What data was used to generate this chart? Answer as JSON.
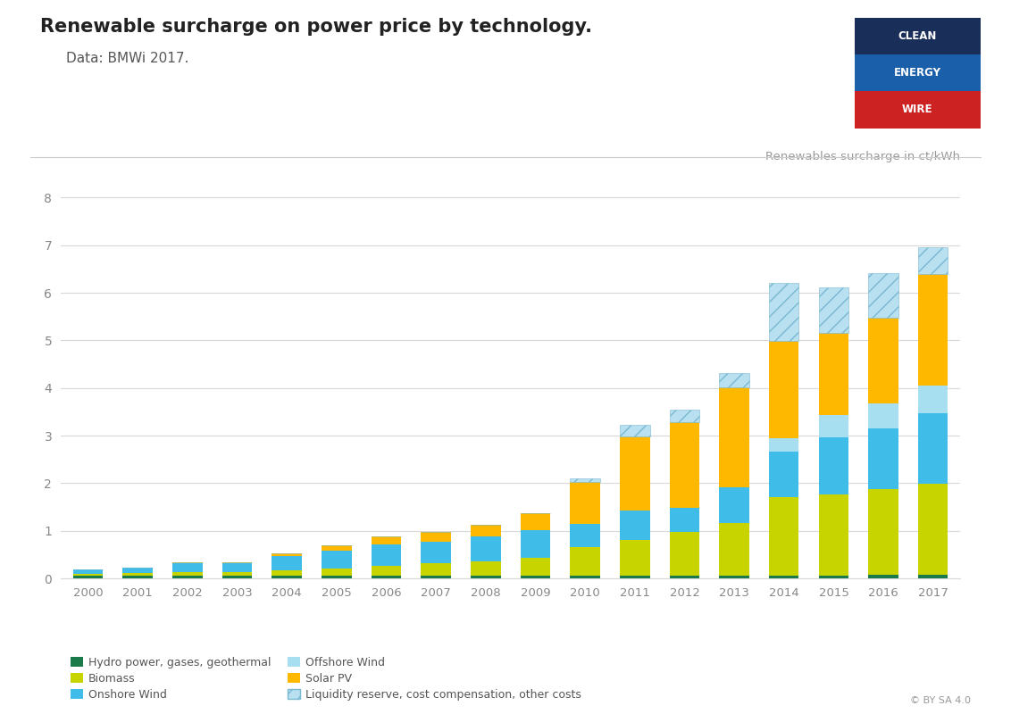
{
  "years": [
    2000,
    2001,
    2002,
    2003,
    2004,
    2005,
    2006,
    2007,
    2008,
    2009,
    2010,
    2011,
    2012,
    2013,
    2014,
    2015,
    2016,
    2017
  ],
  "hydro": [
    0.05,
    0.05,
    0.06,
    0.05,
    0.06,
    0.06,
    0.06,
    0.06,
    0.06,
    0.06,
    0.06,
    0.06,
    0.06,
    0.06,
    0.06,
    0.06,
    0.07,
    0.07
  ],
  "biomass": [
    0.04,
    0.06,
    0.08,
    0.08,
    0.1,
    0.15,
    0.2,
    0.25,
    0.3,
    0.38,
    0.6,
    0.75,
    0.92,
    1.1,
    1.65,
    1.7,
    1.8,
    1.92
  ],
  "onshore_wind": [
    0.1,
    0.12,
    0.18,
    0.18,
    0.3,
    0.38,
    0.45,
    0.45,
    0.52,
    0.58,
    0.48,
    0.62,
    0.5,
    0.75,
    0.95,
    1.2,
    1.28,
    1.48
  ],
  "offshore_wind": [
    0.0,
    0.0,
    0.0,
    0.0,
    0.0,
    0.0,
    0.0,
    0.0,
    0.0,
    0.0,
    0.0,
    0.0,
    0.0,
    0.0,
    0.28,
    0.48,
    0.52,
    0.58
  ],
  "solar_pv": [
    0.0,
    0.0,
    0.02,
    0.02,
    0.07,
    0.1,
    0.18,
    0.22,
    0.25,
    0.35,
    0.88,
    1.55,
    1.8,
    2.1,
    2.05,
    1.72,
    1.8,
    2.35
  ],
  "liquidity": [
    0.0,
    0.0,
    0.0,
    0.0,
    0.0,
    0.0,
    0.0,
    0.0,
    0.0,
    0.0,
    0.08,
    0.25,
    0.27,
    0.3,
    1.22,
    0.96,
    0.95,
    0.55
  ],
  "colors": {
    "hydro": "#1a7a4a",
    "biomass": "#c8d400",
    "onshore_wind": "#3fbce8",
    "offshore_wind": "#a8dff0",
    "solar_pv": "#ffb800",
    "liquidity_face": "#b8e0f0",
    "liquidity_edge": "#7ab8d0"
  },
  "title": "Renewable surcharge on power price by technology.",
  "subtitle": "Data: BMWi 2017.",
  "ylabel": "Renewables surcharge in ct/kWh",
  "ylim": [
    0,
    8.4
  ],
  "yticks": [
    0,
    1,
    2,
    3,
    4,
    5,
    6,
    7,
    8
  ],
  "bg_color": "#ffffff",
  "header_bg": "#ffffff",
  "grid_color": "#d8d8d8",
  "tick_color": "#888888",
  "logo_clean_color": "#1a2e5a",
  "logo_energy_color": "#1a5faa",
  "logo_wire_color": "#cc2222",
  "legend_items": [
    {
      "label": "Hydro power, gases, geothermal",
      "color": "#1a7a4a",
      "hatch": null
    },
    {
      "label": "Biomass",
      "color": "#c8d400",
      "hatch": null
    },
    {
      "label": "Onshore Wind",
      "color": "#3fbce8",
      "hatch": null
    },
    {
      "label": "Offshore Wind",
      "color": "#a8dff0",
      "hatch": null
    },
    {
      "label": "Solar PV",
      "color": "#ffb800",
      "hatch": null
    },
    {
      "label": "Liquidity reserve, cost compensation, other costs",
      "color": "#b8e0f0",
      "hatch": "//"
    }
  ]
}
